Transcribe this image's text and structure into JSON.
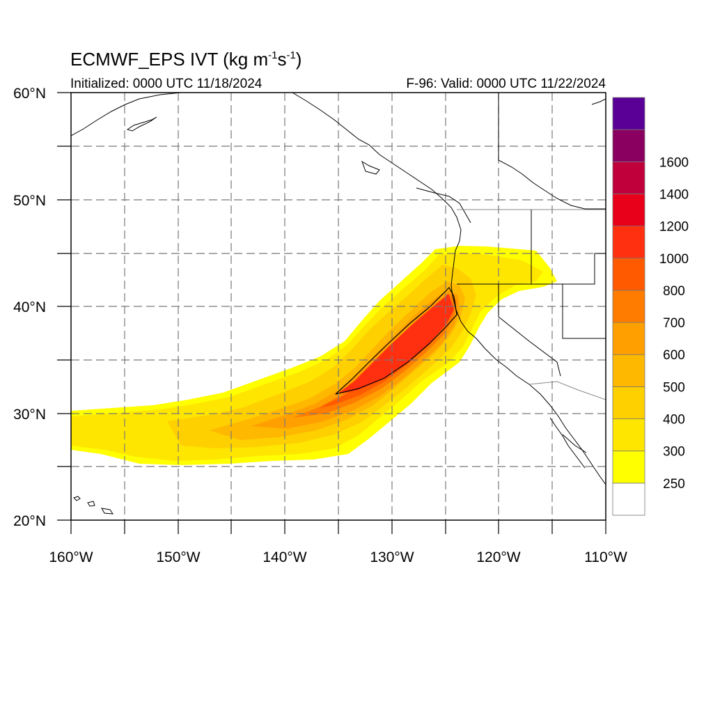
{
  "title": {
    "main": "ECMWF_EPS IVT (kg m",
    "exp1": "-1",
    "mid": "s",
    "exp2": "-1",
    "close": ")"
  },
  "initialized": "Initialized: 0000 UTC 11/18/2024",
  "valid": "F-96: Valid: 0000 UTC 11/22/2024",
  "axes": {
    "lon_labels": [
      "160°W",
      "150°W",
      "140°W",
      "130°W",
      "120°W",
      "110°W"
    ],
    "lat_labels": [
      "60°N",
      "50°N",
      "40°N",
      "30°N",
      "20°N"
    ]
  },
  "colorbar": {
    "levels": [
      "250",
      "300",
      "400",
      "500",
      "600",
      "700",
      "800",
      "1000",
      "1200",
      "1400",
      "1600"
    ],
    "colors": [
      "#ffffff",
      "#ffff00",
      "#ffe600",
      "#ffd000",
      "#ffb800",
      "#ffa000",
      "#ff7c00",
      "#ff5a00",
      "#ff3010",
      "#e8001a",
      "#c0003a",
      "#8a0060",
      "#5a0096"
    ]
  },
  "map_extent": {
    "lon": [
      -160,
      -110
    ],
    "lat": [
      20,
      60
    ]
  }
}
